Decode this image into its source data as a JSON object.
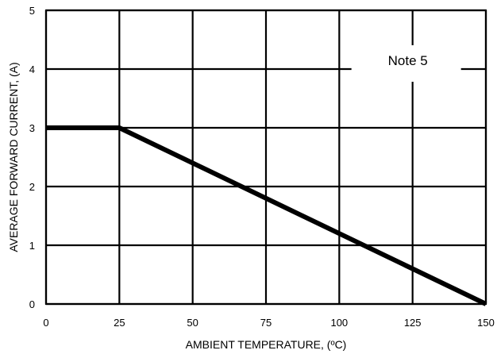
{
  "chart_data": {
    "type": "line",
    "title": "",
    "xlabel": "AMBIENT TEMPERATURE, (ºC)",
    "ylabel": "AVERAGE FORWARD CURRENT, (A)",
    "xlim": [
      0,
      150
    ],
    "ylim": [
      0,
      5
    ],
    "xticks": [
      0,
      25,
      50,
      75,
      100,
      125,
      150
    ],
    "yticks": [
      0,
      1,
      2,
      3,
      4,
      5
    ],
    "grid": true,
    "series": [
      {
        "x": [
          0,
          25,
          150
        ],
        "y": [
          3,
          3,
          0
        ]
      }
    ],
    "annotations": [
      {
        "text": "Note 5"
      }
    ],
    "colors": {
      "line": "#000000",
      "grid": "#000000",
      "background": "#ffffff"
    }
  }
}
